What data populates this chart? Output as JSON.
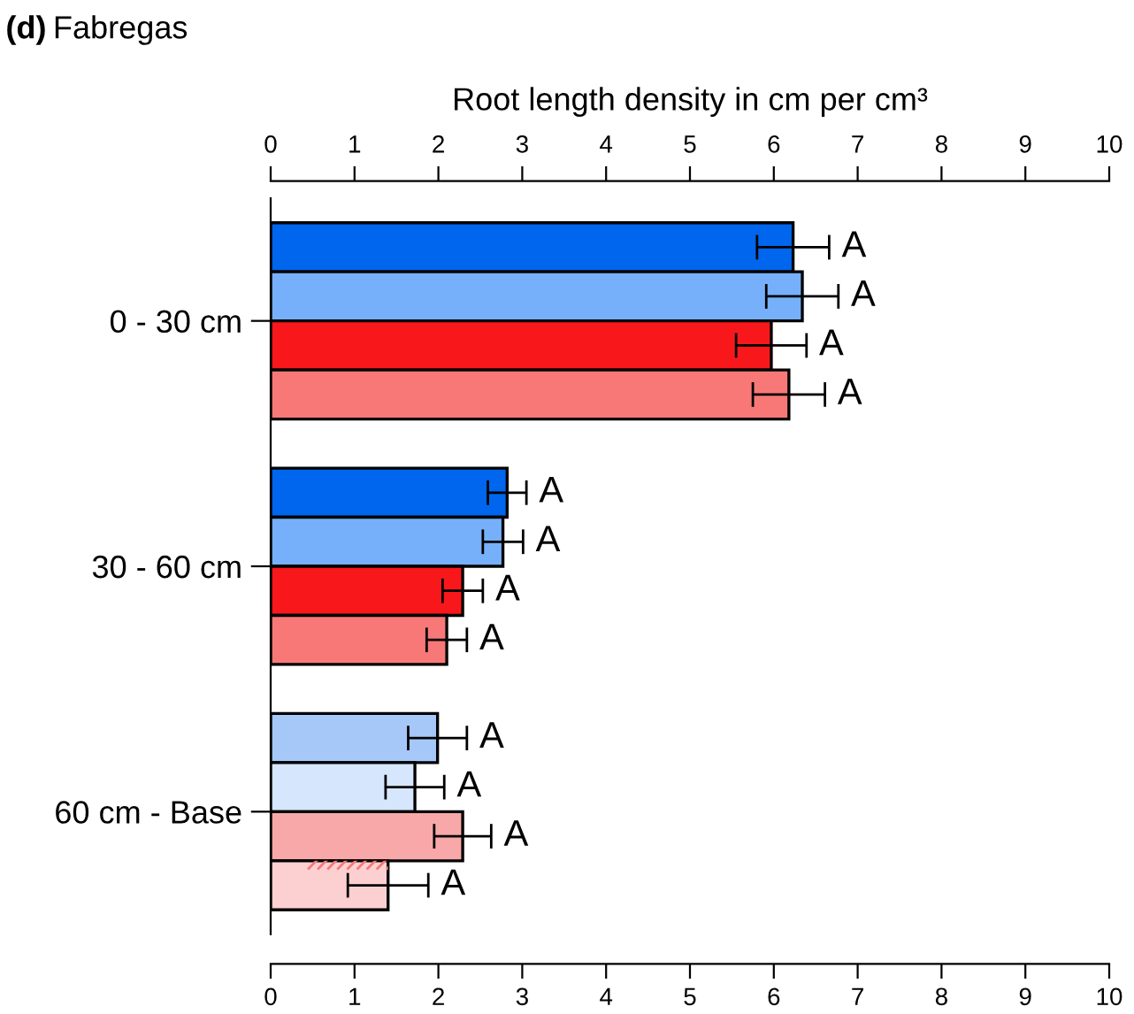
{
  "chart_data": {
    "type": "bar",
    "orientation": "horizontal",
    "title": "(d) Fabregas",
    "xlabel": "Root length density in cm per cm³",
    "categories": [
      "0 - 30 cm",
      "30 - 60 cm",
      "60 cm - Base"
    ],
    "xlim": [
      0,
      10
    ],
    "xticks": [
      0,
      1,
      2,
      3,
      4,
      5,
      6,
      7,
      8,
      9,
      10
    ],
    "x2lim": [
      0,
      10
    ],
    "x2ticks": [
      0,
      1,
      2,
      3,
      4,
      5,
      6,
      7,
      8,
      9,
      10
    ],
    "grid": false,
    "legend": false,
    "series": [
      {
        "color": "#0066ee",
        "colors": [
          "#0066ee",
          "#0066ee",
          "#a6c8f8"
        ],
        "values": [
          6.23,
          2.82,
          1.99
        ],
        "errors": [
          0.43,
          0.23,
          0.35
        ],
        "value_labels": [
          "A",
          "A",
          "A"
        ]
      },
      {
        "color": "#77b0fa",
        "colors": [
          "#77b0fa",
          "#77b0fa",
          "#d6e6fc"
        ],
        "values": [
          6.34,
          2.77,
          1.72
        ],
        "errors": [
          0.43,
          0.24,
          0.35
        ],
        "value_labels": [
          "A",
          "A",
          "A"
        ]
      },
      {
        "color": "#f8181c",
        "colors": [
          "#f8181c",
          "#f8181c",
          "#f8a8a8"
        ],
        "values": [
          5.97,
          2.29,
          2.29
        ],
        "errors": [
          0.42,
          0.24,
          0.34
        ],
        "value_labels": [
          "A",
          "A",
          "A"
        ]
      },
      {
        "color": "#f87878",
        "colors": [
          "#f87878",
          "#f87878",
          "#fcd0d0"
        ],
        "values": [
          6.18,
          2.1,
          1.4
        ],
        "errors": [
          0.43,
          0.24,
          0.48
        ],
        "value_labels": [
          "A",
          "A",
          "A"
        ]
      }
    ]
  }
}
